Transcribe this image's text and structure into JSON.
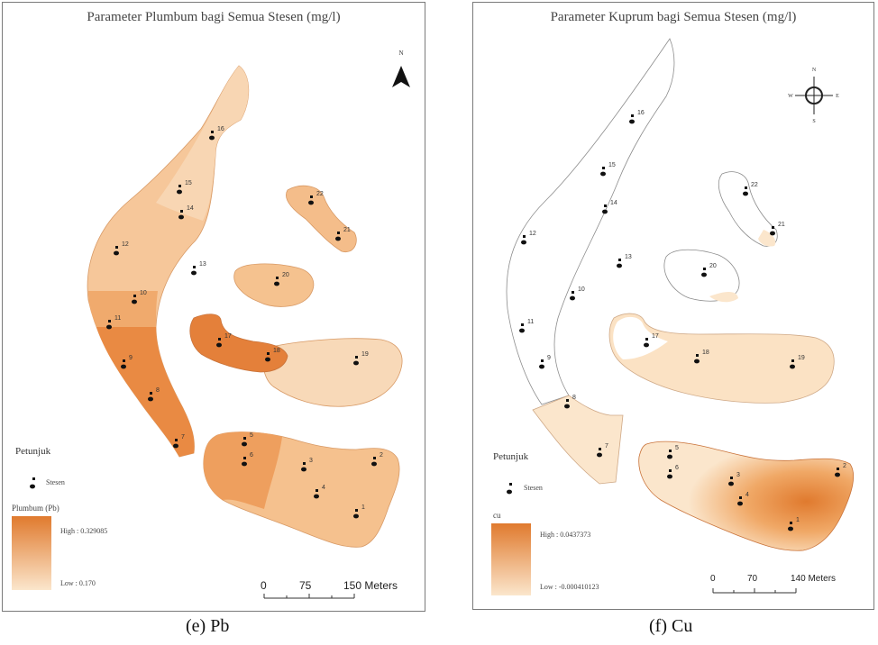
{
  "figure_e": {
    "title": "Parameter Plumbum bagi Semua Stesen (mg/l)",
    "caption": "(e)  Pb",
    "north_label": "N",
    "legend": {
      "heading": "Petunjuk",
      "station_label": "Stesen",
      "layer_label": "Plumbum (Pb)",
      "high_label": "High : 0.329085",
      "low_label": "Low : 0.170",
      "colors": {
        "high": "#e07a2e",
        "low": "#fbe6cc"
      }
    },
    "scale_bar": {
      "labels": [
        "0",
        "75",
        "150 Meters"
      ]
    },
    "stations": [
      "1",
      "2",
      "3",
      "4",
      "5",
      "6",
      "7",
      "8",
      "9",
      "10",
      "11",
      "12",
      "13",
      "14",
      "15",
      "16",
      "17",
      "18",
      "19",
      "20",
      "21",
      "22"
    ]
  },
  "figure_f": {
    "title": "Parameter Kuprum bagi Semua Stesen (mg/l)",
    "caption": "(f)  Cu",
    "compass": {
      "n": "N",
      "s": "S",
      "e": "E",
      "w": "W"
    },
    "legend": {
      "heading": "Petunjuk",
      "station_label": "Stesen",
      "layer_label": "cu",
      "high_label": "High : 0.0437373",
      "low_label": "Low : -0.000410123",
      "colors": {
        "high": "#e07a2e",
        "low": "#fbe6cc"
      }
    },
    "scale_bar": {
      "labels": [
        "0",
        "70",
        "140 Meters"
      ]
    },
    "stations": [
      "1",
      "2",
      "3",
      "4",
      "5",
      "6",
      "7",
      "8",
      "9",
      "10",
      "11",
      "12",
      "13",
      "14",
      "15",
      "16",
      "17",
      "18",
      "19",
      "20",
      "21",
      "22"
    ]
  }
}
